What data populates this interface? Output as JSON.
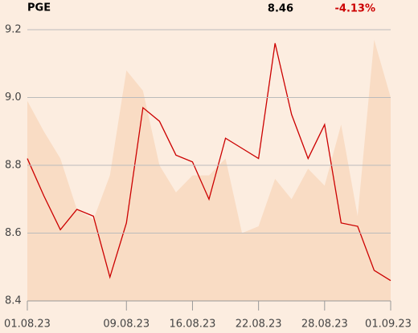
{
  "header": {
    "symbol": "PGE",
    "price": "8.46",
    "change": "-4.13%"
  },
  "chart_data": {
    "type": "line",
    "categories": [
      "01.08.23",
      null,
      null,
      null,
      null,
      null,
      "09.08.23",
      null,
      null,
      null,
      "16.08.23",
      null,
      null,
      null,
      "22.08.23",
      null,
      null,
      null,
      "28.08.23",
      null,
      null,
      null,
      "01.09.23"
    ],
    "series": [
      {
        "color": "#f9dcc4",
        "fill": true,
        "values": [
          8.99,
          8.9,
          8.82,
          8.67,
          8.64,
          8.77,
          9.08,
          9.02,
          8.8,
          8.72,
          8.77,
          8.77,
          8.82,
          8.6,
          8.62,
          8.76,
          8.7,
          8.79,
          8.74,
          8.92,
          8.65,
          9.17,
          9.0
        ]
      },
      {
        "color": "#cc0000",
        "values": [
          8.82,
          8.71,
          8.61,
          8.67,
          8.65,
          8.47,
          8.63,
          8.97,
          8.93,
          8.83,
          8.81,
          8.7,
          8.88,
          8.85,
          8.82,
          9.16,
          8.95,
          8.82,
          8.92,
          8.63,
          8.62,
          8.49,
          8.46
        ]
      }
    ],
    "ylim": [
      8.4,
      9.2
    ],
    "yticks": [
      8.4,
      8.6,
      8.8,
      {
        "value": 9,
        "label": "9.0"
      },
      9.2
    ],
    "grid": true
  }
}
